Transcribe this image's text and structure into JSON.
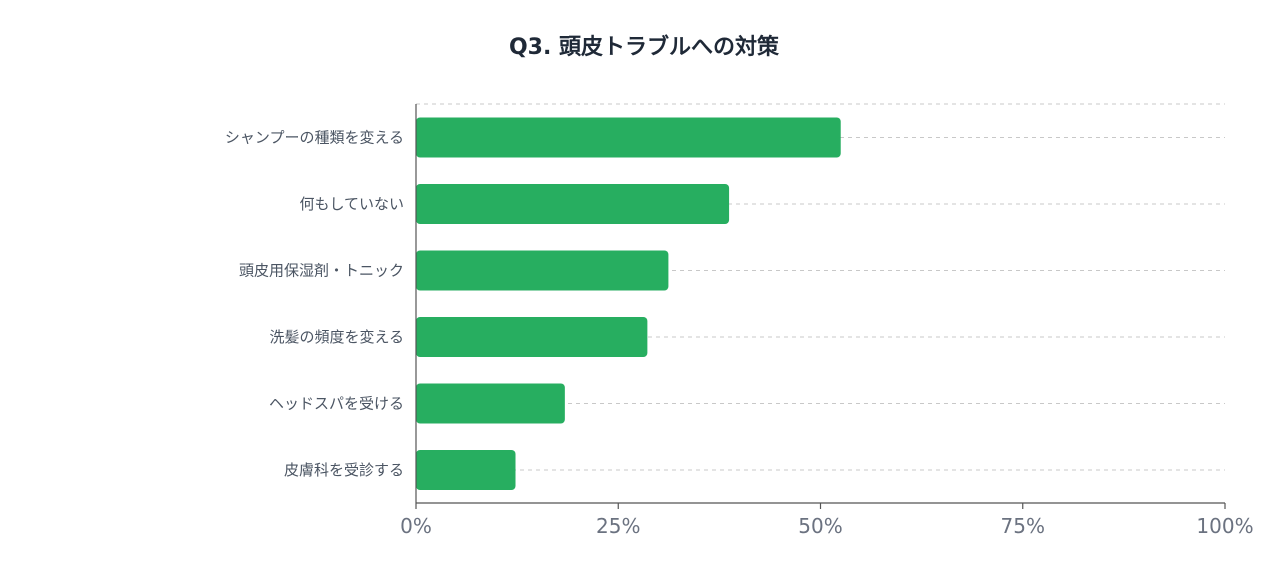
{
  "chart_data": {
    "type": "bar",
    "orientation": "horizontal",
    "title": "Q3. 頭皮トラブルへの対策",
    "categories": [
      "シャンプーの種類を変える",
      "何もしていない",
      "頭皮用保湿剤・トニック",
      "洗髪の頻度を変える",
      "ヘッドスパを受ける",
      "皮膚科を受診する"
    ],
    "values": [
      52.5,
      38.7,
      31.2,
      28.6,
      18.4,
      12.3
    ],
    "xlim": [
      0,
      100
    ],
    "ticks": [
      0,
      25,
      50,
      75,
      100
    ],
    "tick_labels": [
      "0%",
      "25%",
      "50%",
      "75%",
      "100%"
    ],
    "xlabel": "",
    "ylabel": "",
    "grid": true,
    "legend": "none",
    "colors": {
      "bar": "#27ae60",
      "grid": "#c8c8c8",
      "axis": "#555555"
    }
  }
}
